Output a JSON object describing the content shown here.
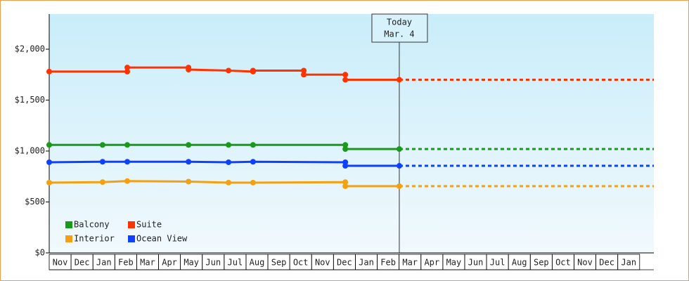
{
  "chart_data": {
    "type": "step-line",
    "categories": [
      "Nov",
      "Dec",
      "Jan",
      "Feb",
      "Mar",
      "Apr",
      "May",
      "Jun",
      "Jul",
      "Aug",
      "Sep",
      "Oct",
      "Nov",
      "Dec",
      "Jan",
      "Feb",
      "Mar",
      "Apr",
      "May",
      "Jun",
      "Jul",
      "Aug",
      "Sep",
      "Oct",
      "Nov",
      "Dec",
      "Jan"
    ],
    "xlim": [
      0,
      27.65
    ],
    "ylim": [
      0,
      2345
    ],
    "yticks": [
      {
        "value": 0,
        "label": "$0"
      },
      {
        "value": 500,
        "label": "$500"
      },
      {
        "value": 1000,
        "label": "$1,000"
      },
      {
        "value": 1500,
        "label": "$1,500"
      },
      {
        "value": 2000,
        "label": "$2,000"
      }
    ],
    "today": {
      "x": 16.01,
      "label": [
        "Today",
        "Mar. 4"
      ]
    },
    "series": [
      {
        "name": "Balcony",
        "color": "#1a9a1a",
        "x": [
          0,
          2.44,
          3.57,
          6.37,
          8.2,
          9.32,
          13.54,
          13.54,
          16.01
        ],
        "values": [
          1060,
          1060,
          1060,
          1060,
          1060,
          1060,
          1060,
          1020,
          1020
        ]
      },
      {
        "name": "Suite",
        "color": "#ff3300",
        "x": [
          0,
          3.57,
          3.57,
          6.37,
          6.37,
          8.2,
          9.32,
          9.32,
          11.64,
          11.64,
          13.54,
          13.54,
          16.01
        ],
        "values": [
          1780,
          1780,
          1820,
          1820,
          1800,
          1790,
          1780,
          1790,
          1790,
          1750,
          1750,
          1700,
          1700
        ]
      },
      {
        "name": "Interior",
        "color": "#f5a010",
        "x": [
          0,
          2.44,
          3.57,
          6.37,
          8.2,
          9.32,
          13.54,
          13.54,
          16.01
        ],
        "values": [
          690,
          695,
          705,
          700,
          690,
          690,
          695,
          655,
          655
        ]
      },
      {
        "name": "Ocean View",
        "color": "#1040ff",
        "x": [
          0,
          2.44,
          3.57,
          6.37,
          8.2,
          9.32,
          13.54,
          13.54,
          16.01
        ],
        "values": [
          890,
          895,
          895,
          895,
          890,
          895,
          890,
          855,
          855
        ]
      }
    ]
  }
}
